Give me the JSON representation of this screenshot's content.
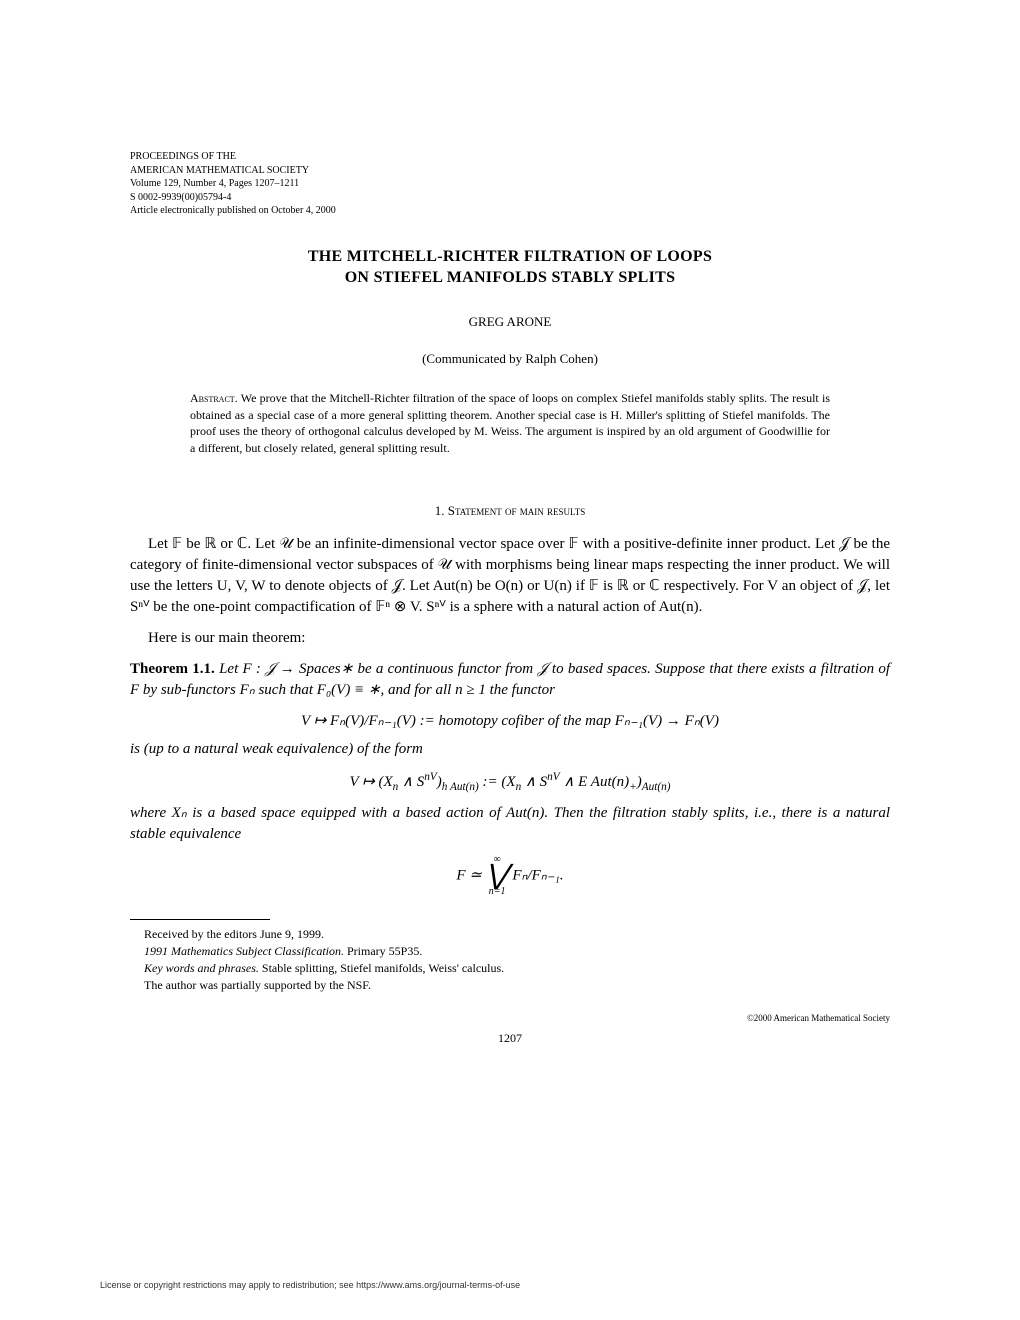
{
  "header": {
    "line1": "PROCEEDINGS OF THE",
    "line2": "AMERICAN MATHEMATICAL SOCIETY",
    "line3": "Volume 129, Number 4, Pages 1207–1211",
    "line4": "S 0002-9939(00)05794-4",
    "line5": "Article electronically published on October 4, 2000"
  },
  "title": {
    "line1": "THE MITCHELL-RICHTER FILTRATION OF LOOPS",
    "line2": "ON STIEFEL MANIFOLDS STABLY SPLITS"
  },
  "author": "GREG ARONE",
  "communicated": "(Communicated by Ralph Cohen)",
  "abstract": {
    "label": "Abstract.",
    "text": "We prove that the Mitchell-Richter filtration of the space of loops on complex Stiefel manifolds stably splits. The result is obtained as a special case of a more general splitting theorem. Another special case is H. Miller's splitting of Stiefel manifolds. The proof uses the theory of orthogonal calculus developed by M. Weiss. The argument is inspired by an old argument of Goodwillie for a different, but closely related, general splitting result."
  },
  "section1": {
    "number": "1.",
    "title": "Statement of main results"
  },
  "para1": "Let 𝔽 be ℝ or ℂ. Let 𝒰 be an infinite-dimensional vector space over 𝔽 with a positive-definite inner product. Let 𝒥 be the category of finite-dimensional vector subspaces of 𝒰 with morphisms being linear maps respecting the inner product. We will use the letters U, V, W to denote objects of 𝒥. Let Aut(n) be O(n) or U(n) if 𝔽 is ℝ or ℂ respectively. For V an object of 𝒥, let Sⁿⱽ be the one-point compactification of 𝔽ⁿ ⊗ V. Sⁿⱽ is a sphere with a natural action of Aut(n).",
  "para2": "Here is our main theorem:",
  "theorem": {
    "label": "Theorem 1.1.",
    "stmt1": "Let F : 𝒥 → Spaces∗ be a continuous functor from 𝒥 to based spaces. Suppose that there exists a filtration of F by sub-functors Fₙ such that F₀(V) ≡ ∗, and for all n ≥ 1 the functor",
    "eq1": "V ↦ Fₙ(V)/Fₙ₋₁(V) :=  homotopy cofiber of the map Fₙ₋₁(V) → Fₙ(V)",
    "stmt2": "is (up to a natural weak equivalence) of the form",
    "eq2": "V ↦ (Xₙ ∧ Sⁿⱽ)ₕAut(n) := (Xₙ ∧ Sⁿⱽ ∧ E Aut(n)₊)Aut(n)",
    "stmt3": "where Xₙ is a based space equipped with a based action of Aut(n). Then the filtration stably splits, i.e., there is a natural stable equivalence",
    "eq3_left": "F ≃ ",
    "eq3_upper": "∞",
    "eq3_lower": "n=1",
    "eq3_right": " Fₙ/Fₙ₋₁."
  },
  "footnotes": {
    "received": "Received by the editors June 9, 1999.",
    "msc": "1991 Mathematics Subject Classification. Primary 55P35.",
    "msc_label": "1991 Mathematics Subject Classification.",
    "msc_text": " Primary 55P35.",
    "keywords_label": "Key words and phrases.",
    "keywords_text": " Stable splitting, Stiefel manifolds, Weiss' calculus.",
    "support": "The author was partially supported by the NSF."
  },
  "copyright": "©2000 American Mathematical Society",
  "page_number": "1207",
  "license": "License or copyright restrictions may apply to redistribution; see https://www.ams.org/journal-terms-of-use"
}
